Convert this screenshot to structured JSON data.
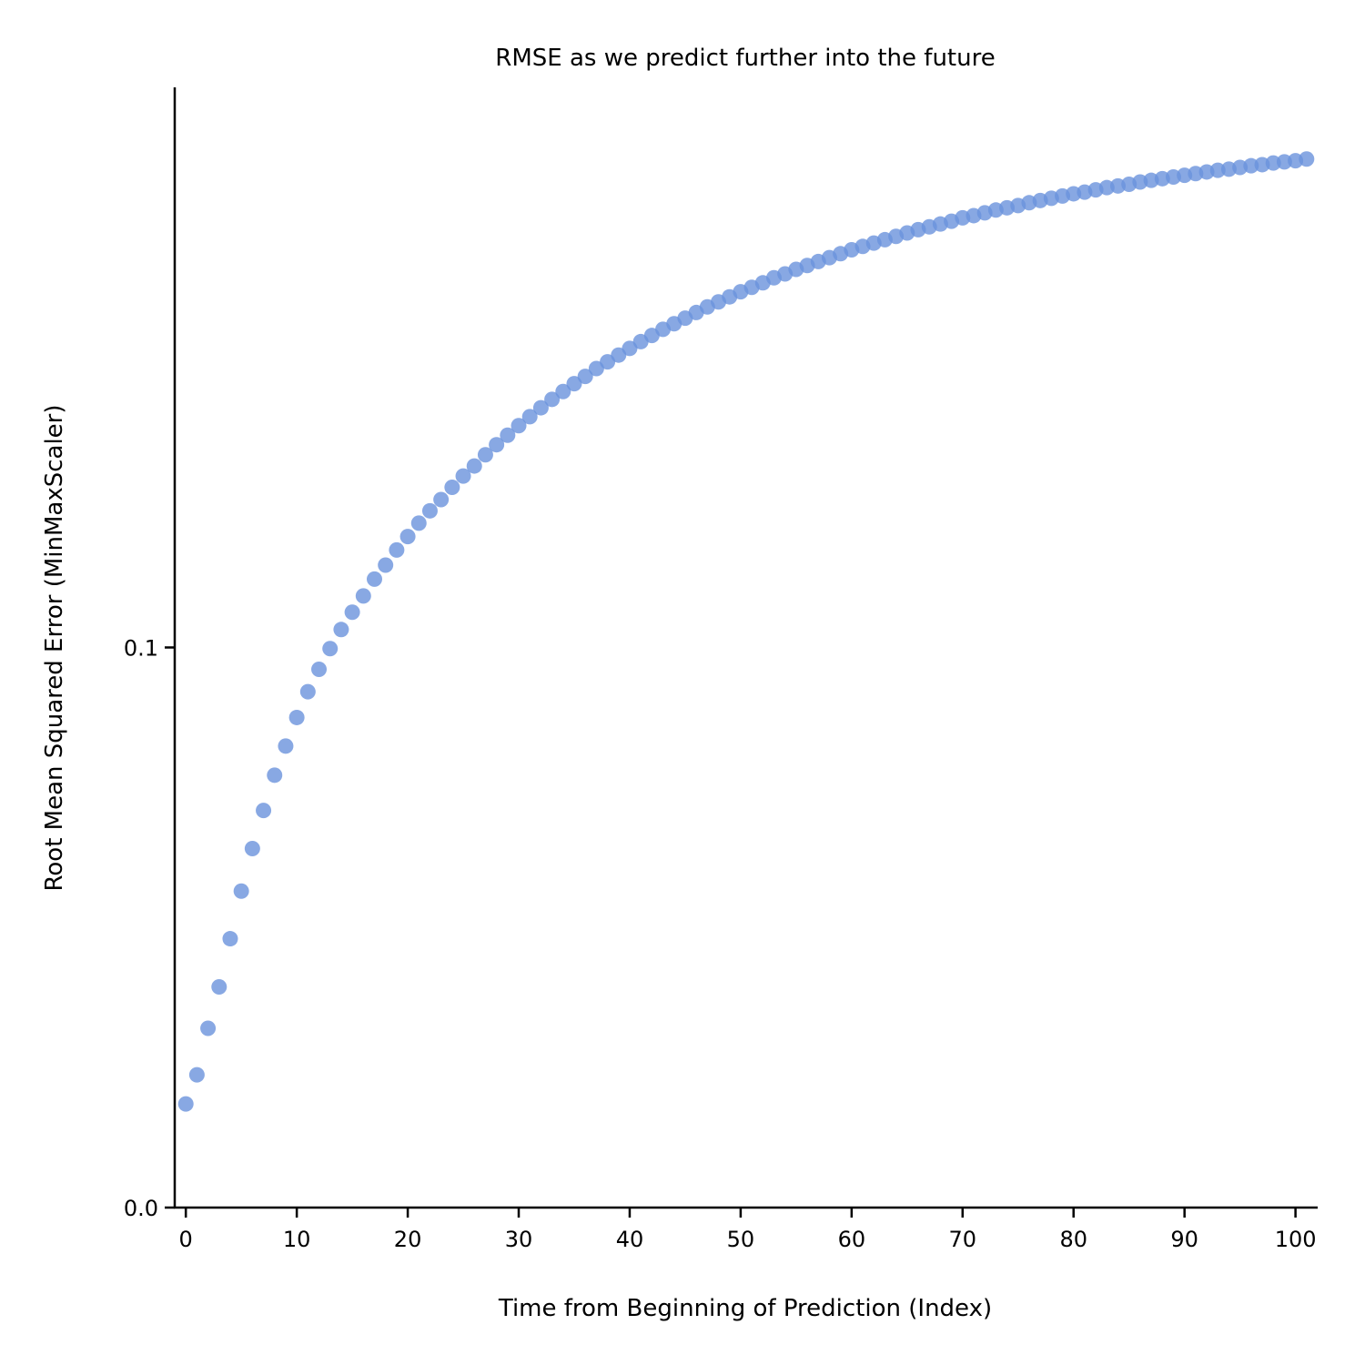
{
  "chart_data": {
    "type": "scatter",
    "title": "RMSE as we predict further into the future",
    "xlabel": "Time from Beginning of Prediction (Index)",
    "ylabel": "Root Mean Squared Error (MinMaxScaler)",
    "xlim": [
      -1,
      102
    ],
    "ylim": [
      0.0,
      0.2
    ],
    "x_ticks": [
      0,
      10,
      20,
      30,
      40,
      50,
      60,
      70,
      80,
      90,
      100
    ],
    "x_tick_labels": [
      "0",
      "10",
      "20",
      "30",
      "40",
      "50",
      "60",
      "70",
      "80",
      "90",
      "100"
    ],
    "y_ticks": [
      0.0,
      0.1
    ],
    "y_tick_labels": [
      "0.0",
      "0.1"
    ],
    "grid": false,
    "marker_color": "#6a92dc",
    "series": [
      {
        "x": [
          0,
          1,
          2,
          3,
          4,
          5,
          6,
          7,
          8,
          9,
          10,
          11,
          12,
          13,
          14,
          15,
          16,
          17,
          18,
          19,
          20,
          21,
          22,
          23,
          24,
          25,
          26,
          27,
          28,
          29,
          30,
          31,
          32,
          33,
          34,
          35,
          36,
          37,
          38,
          39,
          40,
          41,
          42,
          43,
          44,
          45,
          46,
          47,
          48,
          49,
          50,
          51,
          52,
          53,
          54,
          55,
          56,
          57,
          58,
          59,
          60,
          61,
          62,
          63,
          64,
          65,
          66,
          67,
          68,
          69,
          70,
          71,
          72,
          73,
          74,
          75,
          76,
          77,
          78,
          79,
          80,
          81,
          82,
          83,
          84,
          85,
          86,
          87,
          88,
          89,
          90,
          91,
          92,
          93,
          94,
          95,
          96,
          97,
          98,
          99,
          100,
          101
        ],
        "y": [
          0.0185,
          0.0237,
          0.032,
          0.0394,
          0.048,
          0.0565,
          0.0641,
          0.0709,
          0.0772,
          0.0824,
          0.0875,
          0.0921,
          0.0961,
          0.0998,
          0.1032,
          0.1063,
          0.1092,
          0.1122,
          0.1147,
          0.1174,
          0.1198,
          0.1222,
          0.1244,
          0.1264,
          0.1286,
          0.1306,
          0.1324,
          0.1344,
          0.1362,
          0.1379,
          0.1396,
          0.1412,
          0.1428,
          0.1443,
          0.1457,
          0.1471,
          0.1484,
          0.1498,
          0.151,
          0.1522,
          0.1534,
          0.1546,
          0.1557,
          0.1568,
          0.1578,
          0.1588,
          0.1598,
          0.1608,
          0.1617,
          0.1626,
          0.1635,
          0.1643,
          0.1651,
          0.166,
          0.1667,
          0.1675,
          0.1682,
          0.1689,
          0.1696,
          0.1703,
          0.171,
          0.1716,
          0.1722,
          0.1728,
          0.1734,
          0.174,
          0.1746,
          0.1751,
          0.1756,
          0.1761,
          0.1767,
          0.1771,
          0.1776,
          0.1781,
          0.1785,
          0.1789,
          0.1794,
          0.1798,
          0.1802,
          0.1806,
          0.181,
          0.1813,
          0.1817,
          0.1821,
          0.1824,
          0.1827,
          0.1831,
          0.1834,
          0.1837,
          0.184,
          0.1843,
          0.1846,
          0.1849,
          0.1852,
          0.1854,
          0.1857,
          0.186,
          0.1862,
          0.1865,
          0.1867,
          0.1869,
          0.1872
        ]
      }
    ]
  }
}
